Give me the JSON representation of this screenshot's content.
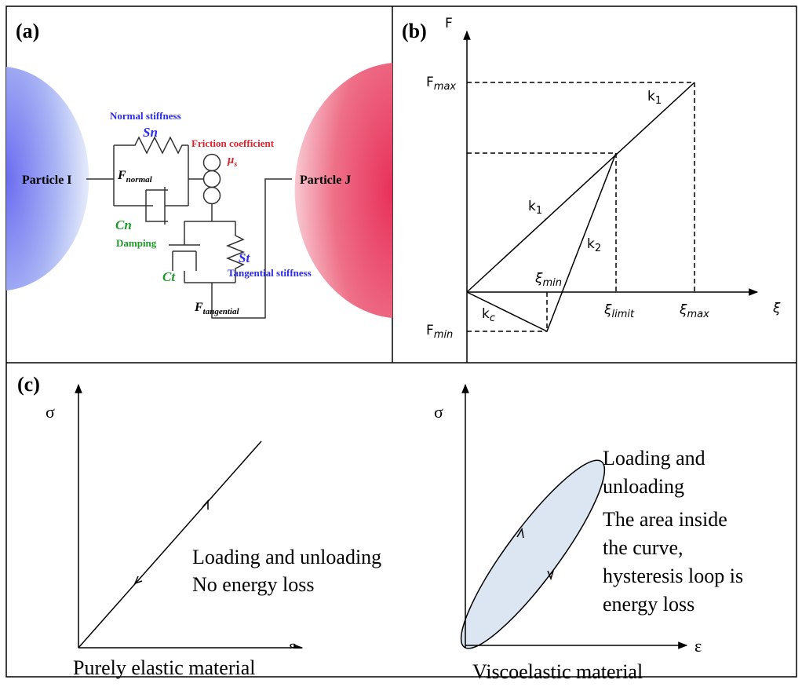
{
  "panel_a": {
    "label": "(a)",
    "particle_i": "Particle I",
    "particle_j": "Particle J",
    "normal_stiffness": "Normal stiffness",
    "sn": "Sn",
    "friction_coefficient": "Friction coefficient",
    "mu": {
      "main": "μ",
      "sub": "s"
    },
    "f_normal": {
      "main": "F",
      "sub": "normal"
    },
    "cn": "Cn",
    "damping": "Damping",
    "ct": "Ct",
    "st": "St",
    "tangential_stiffness": "Tangential stiffness",
    "f_tangential": {
      "main": "F",
      "sub": "tangential"
    }
  },
  "panel_b": {
    "label": "(b)",
    "f_axis": "F",
    "xi_axis": "ξ",
    "f_max": {
      "main": "F",
      "sub": "max"
    },
    "f_min": {
      "main": "F",
      "sub": "min"
    },
    "k1_upper": {
      "main": "k",
      "sub": "1"
    },
    "k1_lower": {
      "main": "k",
      "sub": "1"
    },
    "k2": {
      "main": "k",
      "sub": "2"
    },
    "kc": {
      "main": "k",
      "sub": "c"
    },
    "xi_min": {
      "main": "ξ",
      "sub": "min"
    },
    "xi_limit": {
      "main": "ξ",
      "sub": "limit"
    },
    "xi_max": {
      "main": "ξ",
      "sub": "max"
    }
  },
  "panel_c": {
    "label": "(c)",
    "elastic": {
      "sigma": "σ",
      "epsilon": "ε",
      "note": [
        "Loading and unloading",
        "No energy loss"
      ],
      "caption": "Purely elastic material"
    },
    "viscoelastic": {
      "sigma": "σ",
      "epsilon": "ε",
      "note": [
        "Loading and",
        "unloading",
        "The area inside",
        "the curve,",
        "hysteresis loop is",
        "energy loss"
      ],
      "caption": "Viscoelastic material"
    }
  }
}
